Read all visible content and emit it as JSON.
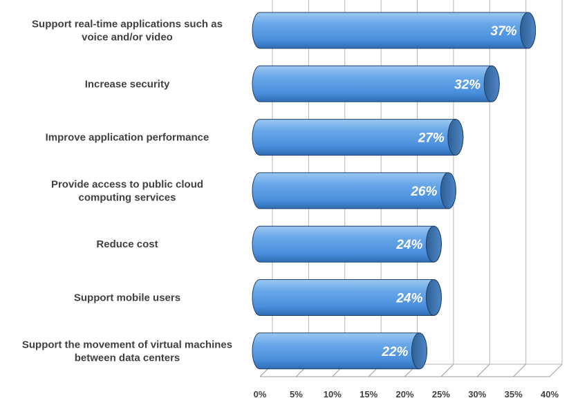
{
  "chart_data": {
    "type": "bar",
    "orientation": "horizontal",
    "categories": [
      "Support real-time applications such as voice and/or video",
      "Increase security",
      "Improve application performance",
      "Provide access to public cloud computing services",
      "Reduce cost",
      "Support mobile users",
      "Support the movement of virtual machines between data centers"
    ],
    "category_lines": [
      [
        "Support real-time applications such as",
        "voice and/or video"
      ],
      [
        "Increase security"
      ],
      [
        "Improve application performance"
      ],
      [
        "Provide access to public cloud",
        "computing services"
      ],
      [
        "Reduce cost"
      ],
      [
        "Support mobile users"
      ],
      [
        "Support the movement of virtual machines",
        "between data centers"
      ]
    ],
    "values": [
      37,
      32,
      27,
      26,
      24,
      24,
      22
    ],
    "value_labels": [
      "37%",
      "32%",
      "27%",
      "26%",
      "24%",
      "24%",
      "22%"
    ],
    "xlim": [
      0,
      40
    ],
    "xticks": [
      0,
      5,
      10,
      15,
      20,
      25,
      30,
      35,
      40
    ],
    "xtick_labels": [
      "0%",
      "5%",
      "10%",
      "15%",
      "20%",
      "25%",
      "30%",
      "35%",
      "40%"
    ],
    "grid": true,
    "bar_color": "#5b9bd5",
    "title": "",
    "xlabel": "",
    "ylabel": ""
  }
}
